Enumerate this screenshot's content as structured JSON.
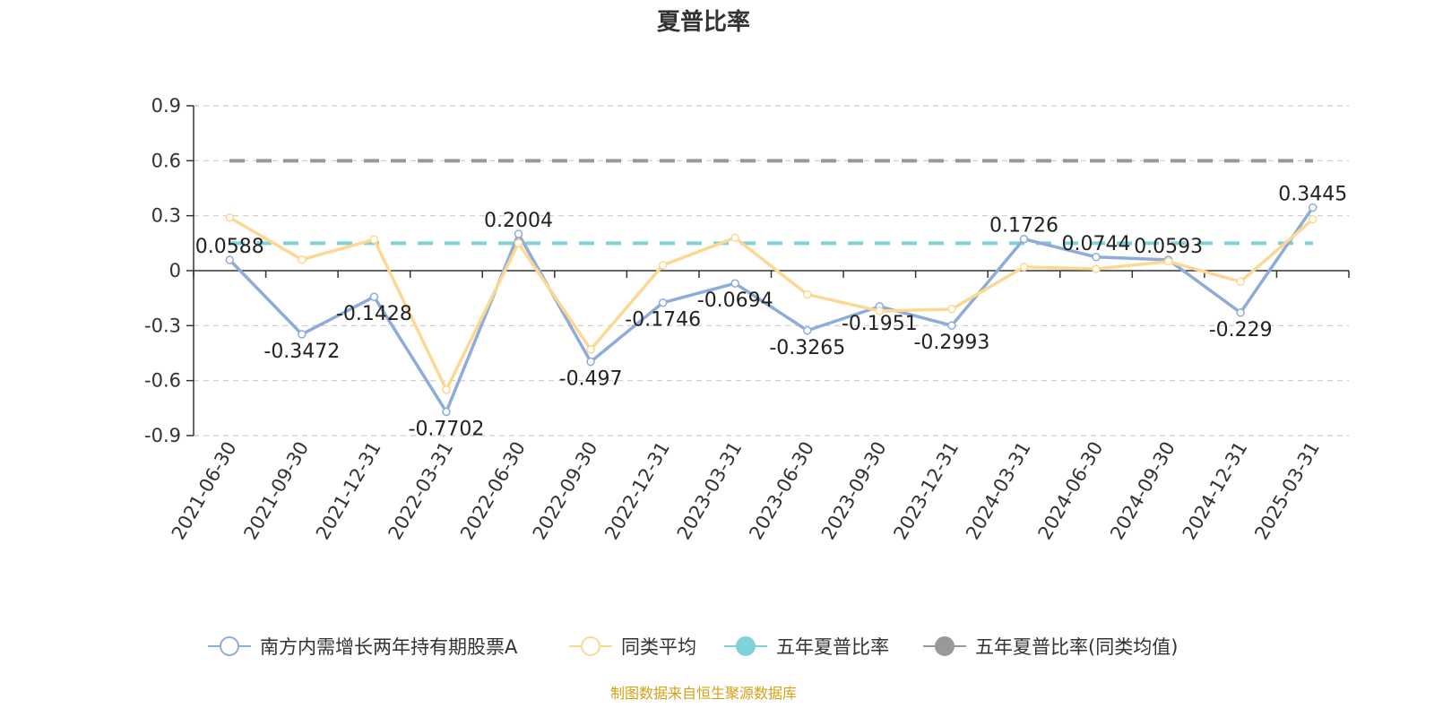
{
  "chart_data": {
    "type": "line",
    "title": "夏普比率",
    "categories": [
      "2021-06-30",
      "2021-09-30",
      "2021-12-31",
      "2022-03-31",
      "2022-06-30",
      "2022-09-30",
      "2022-12-31",
      "2023-03-31",
      "2023-06-30",
      "2023-09-30",
      "2023-12-31",
      "2024-03-31",
      "2024-06-30",
      "2024-09-30",
      "2024-12-31",
      "2025-03-31"
    ],
    "ylim": [
      -0.9,
      0.9
    ],
    "yticks": [
      "0.9",
      "0.6",
      "0.3",
      "0",
      "-0.3",
      "-0.6",
      "-0.9"
    ],
    "grid": true,
    "legend_position": "bottom",
    "series": [
      {
        "name": "南方内需增长两年持有期股票A",
        "color": "#8eacd9",
        "values": [
          0.0588,
          -0.3472,
          -0.1428,
          -0.7702,
          0.2004,
          -0.497,
          -0.1746,
          -0.0694,
          -0.3265,
          -0.1951,
          -0.2993,
          0.1726,
          0.0744,
          0.0593,
          -0.229,
          0.3445
        ],
        "labels": [
          "0.0588",
          "-0.3472",
          "-0.1428",
          "-0.7702",
          "0.2004",
          "-0.497",
          "-0.1746",
          "-0.0694",
          "-0.3265",
          "-0.1951",
          "-0.2993",
          "0.1726",
          "0.0744",
          "0.0593",
          "-0.229",
          "0.3445"
        ]
      },
      {
        "name": "同类平均",
        "color": "#fcd893",
        "values": [
          0.29,
          0.06,
          0.17,
          -0.65,
          0.15,
          -0.43,
          0.03,
          0.18,
          -0.13,
          -0.22,
          -0.21,
          0.02,
          0.01,
          0.05,
          -0.06,
          0.28
        ]
      }
    ],
    "reference_lines": [
      {
        "name": "五年夏普比率",
        "color": "#7fd3d8",
        "value": 0.15
      },
      {
        "name": "五年夏普比率(同类均值)",
        "color": "#999999",
        "value": 0.6
      }
    ],
    "source": "制图数据来自恒生聚源数据库"
  }
}
